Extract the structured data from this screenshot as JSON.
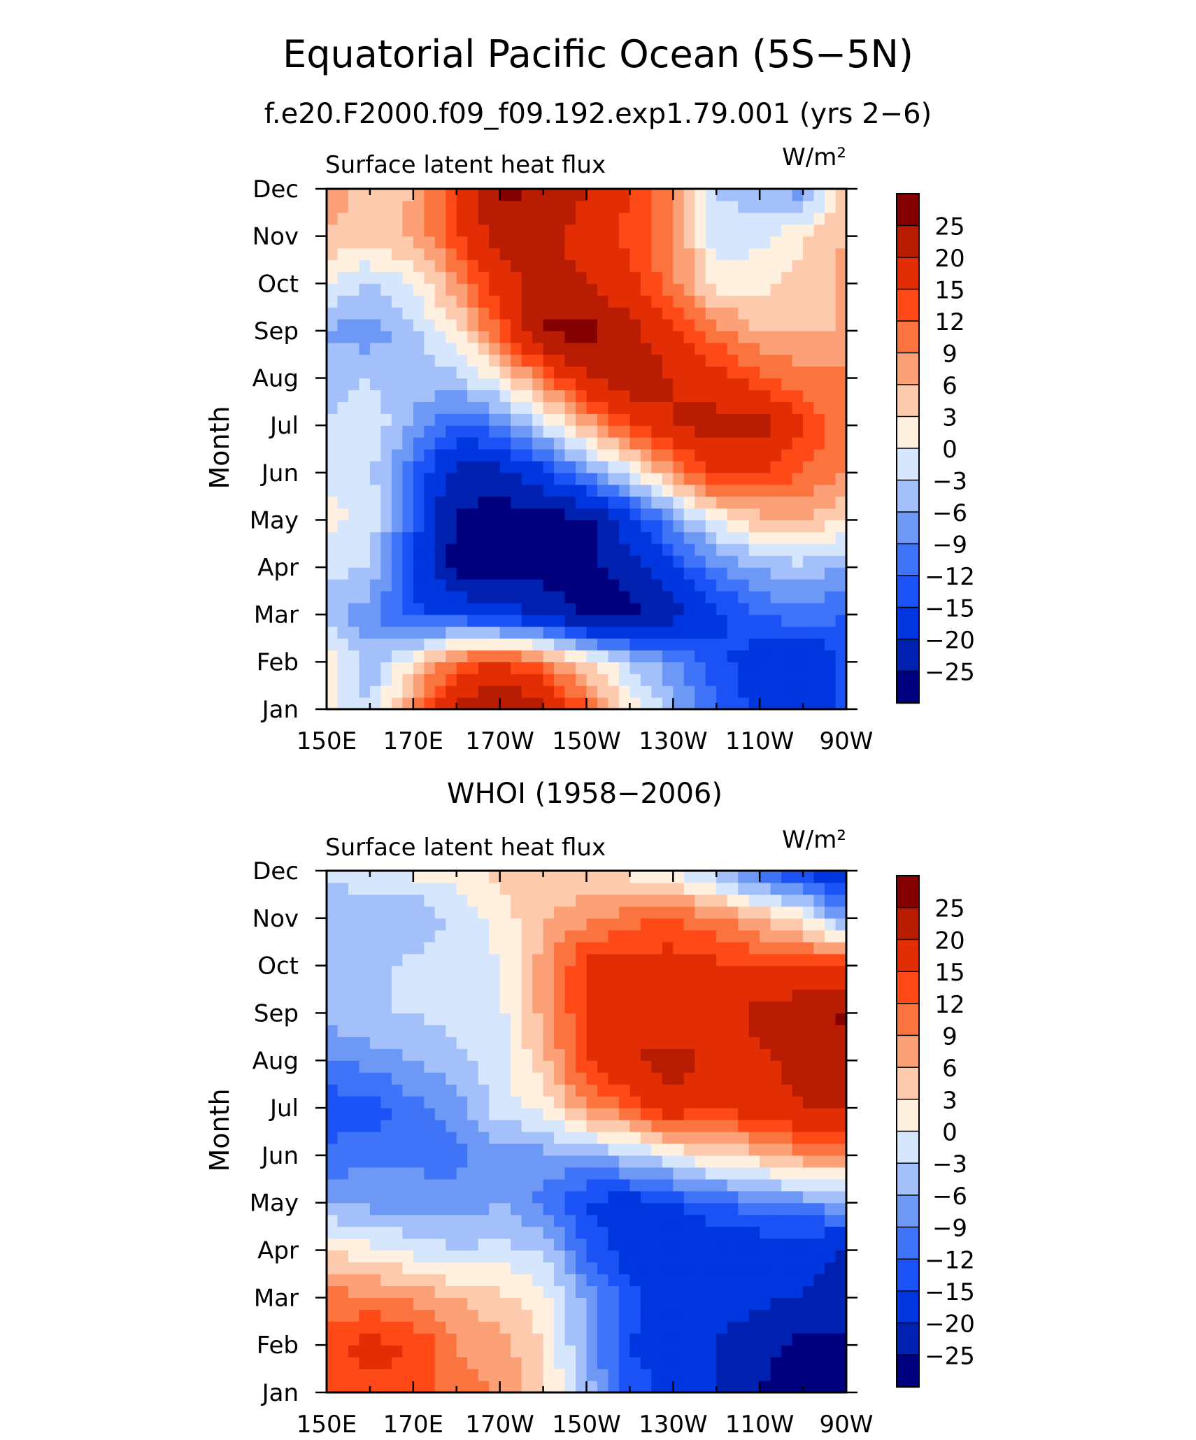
{
  "title": "Equatorial Pacific Ocean (5S−5N)",
  "subtitle": "f.e20.F2000.f09_f09.192.exp1.79.001 (yrs 2−6)",
  "panel2_title": "WHOI (1958−2006)",
  "colors": {
    "levels": [
      "#00007f",
      "#0020b0",
      "#0036df",
      "#1a52f5",
      "#3f74f8",
      "#6d98f5",
      "#a4c0fa",
      "#d6e6fd",
      "#fff0e0",
      "#fdcaad",
      "#fca177",
      "#fb7440",
      "#ff4a18",
      "#e32e05",
      "#b81c03",
      "#850000"
    ]
  },
  "chart_data": [
    {
      "type": "heatmap",
      "panel_label": "Surface latent heat flux",
      "units": "W/m²",
      "ylabel": "Month",
      "xlabel": "",
      "x_ticklabels": [
        "150E",
        "170E",
        "170W",
        "150W",
        "130W",
        "110W",
        "90W"
      ],
      "x_lon": [
        150,
        160,
        170,
        180,
        190,
        200,
        210,
        220,
        230,
        240,
        250,
        260,
        270
      ],
      "y_ticklabels": [
        "Jan",
        "Feb",
        "Mar",
        "Apr",
        "May",
        "Jun",
        "Jul",
        "Aug",
        "Sep",
        "Oct",
        "Nov",
        "Dec"
      ],
      "levels": [
        -25,
        -20,
        -15,
        -12,
        -9,
        -6,
        -3,
        0,
        3,
        6,
        9,
        12,
        15,
        20,
        25
      ],
      "grid": false,
      "values": [
        [
          1,
          -3,
          10,
          22,
          27,
          22,
          12,
          2,
          -5,
          -12,
          -16,
          -20,
          -14
        ],
        [
          3,
          -5,
          2,
          12,
          15,
          10,
          3,
          -3,
          -8,
          -14,
          -17,
          -20,
          -14
        ],
        [
          -5,
          -8,
          -14,
          -15,
          -18,
          -20,
          -26,
          -28,
          -22,
          -16,
          -12,
          -10,
          -12
        ],
        [
          -2,
          -3,
          -15,
          -27,
          -28,
          -28,
          -27,
          -22,
          -15,
          -9,
          -6,
          -4,
          -7
        ],
        [
          1,
          -1,
          -13,
          -26,
          -28,
          -28,
          -26,
          -17,
          -8,
          0,
          5,
          6,
          3
        ],
        [
          -1,
          -2,
          -12,
          -22,
          -22,
          -16,
          -8,
          -1,
          8,
          16,
          15,
          12,
          9
        ],
        [
          -3,
          -1,
          -6,
          -12,
          -10,
          -2,
          6,
          14,
          20,
          22,
          22,
          15,
          9
        ],
        [
          -5,
          -3,
          -5,
          -4,
          2,
          10,
          20,
          24,
          20,
          17,
          13,
          10,
          10
        ],
        [
          -6,
          -8,
          -4,
          2,
          12,
          26,
          27,
          22,
          15,
          10,
          6,
          6,
          6
        ],
        [
          0,
          -3,
          0,
          8,
          18,
          22,
          20,
          16,
          10,
          2,
          2,
          4,
          7
        ],
        [
          6,
          4,
          7,
          14,
          22,
          22,
          18,
          14,
          10,
          -2,
          -1,
          3,
          6
        ],
        [
          8,
          5,
          6,
          15,
          27,
          23,
          20,
          15,
          8,
          -3,
          -5,
          -8,
          5
        ]
      ]
    },
    {
      "type": "heatmap",
      "panel_label": "Surface latent heat flux",
      "units": "W/m²",
      "ylabel": "Month",
      "xlabel": "",
      "x_ticklabels": [
        "150E",
        "170E",
        "170W",
        "150W",
        "130W",
        "110W",
        "90W"
      ],
      "x_lon": [
        150,
        160,
        170,
        180,
        190,
        200,
        210,
        220,
        230,
        240,
        250,
        260,
        270
      ],
      "y_ticklabels": [
        "Jan",
        "Feb",
        "Mar",
        "Apr",
        "May",
        "Jun",
        "Jul",
        "Aug",
        "Sep",
        "Oct",
        "Nov",
        "Dec"
      ],
      "levels": [
        -25,
        -20,
        -15,
        -12,
        -9,
        -6,
        -3,
        0,
        3,
        6,
        9,
        12,
        15,
        20,
        25
      ],
      "grid": false,
      "values": [
        [
          13,
          14,
          14,
          10,
          9,
          4,
          -4,
          -13,
          -17,
          -20,
          -25,
          -28,
          -30
        ],
        [
          14,
          16,
          15,
          9,
          7,
          3,
          -7,
          -15,
          -17,
          -20,
          -24,
          -26,
          -27
        ],
        [
          10,
          10,
          8,
          6,
          4,
          1,
          -7,
          -14,
          -17,
          -17,
          -19,
          -20,
          -22
        ],
        [
          3,
          1,
          -1,
          -3,
          -2,
          -3,
          -12,
          -17,
          -20,
          -18,
          -18,
          -19,
          -20
        ],
        [
          -6,
          -7,
          -7,
          -8,
          -6,
          -10,
          -16,
          -17,
          -15,
          -12,
          -10,
          -8,
          -7
        ],
        [
          -11,
          -10,
          -10,
          -10,
          -8,
          -7,
          -6,
          -4,
          0,
          3,
          5,
          8,
          8
        ],
        [
          -14,
          -14,
          -10,
          -8,
          -1,
          1,
          8,
          12,
          18,
          15,
          18,
          20,
          20
        ],
        [
          -9,
          -8,
          -6,
          -4,
          -1,
          5,
          15,
          20,
          22,
          18,
          19,
          22,
          22
        ],
        [
          -5,
          -3,
          -3,
          -2,
          -1,
          7,
          15,
          17,
          17,
          16,
          22,
          24,
          26
        ],
        [
          -3,
          -4,
          -2,
          -2,
          0,
          7,
          16,
          16,
          17,
          16,
          14,
          14,
          15
        ],
        [
          -4,
          -5,
          -6,
          -2,
          1,
          6,
          8,
          11,
          12,
          10,
          6,
          2,
          -8
        ],
        [
          -3,
          -1,
          1,
          1,
          4,
          4,
          3,
          2,
          -1,
          -5,
          -12,
          -16,
          -20
        ]
      ]
    }
  ],
  "colorbar": {
    "labels": [
      "25",
      "20",
      "15",
      "12",
      "9",
      "6",
      "3",
      "0",
      "−3",
      "−6",
      "−9",
      "−12",
      "−15",
      "−20",
      "−25"
    ]
  }
}
